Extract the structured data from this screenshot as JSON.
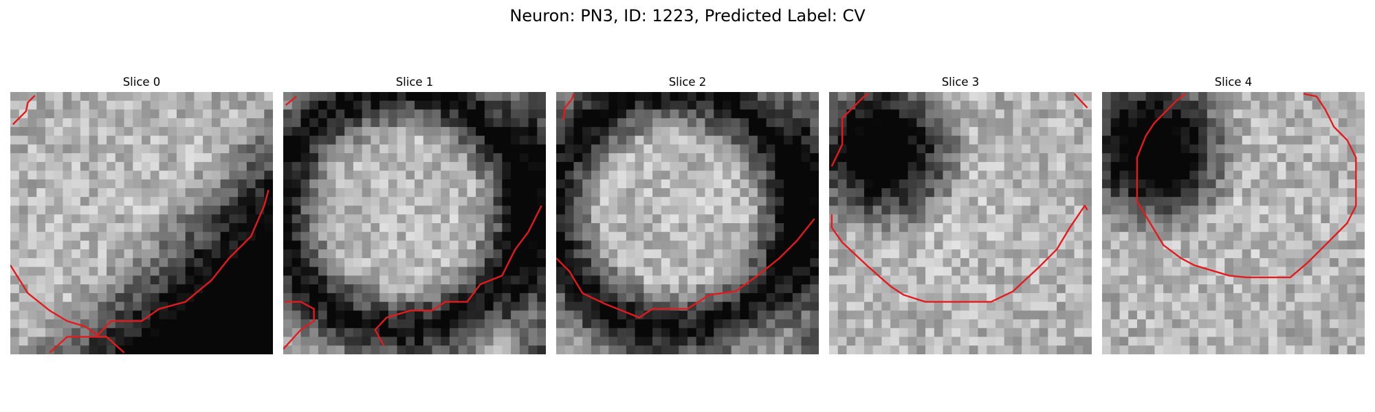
{
  "figure": {
    "title": "Neuron: PN3, ID: 1223, Predicted Label: CV"
  },
  "panels": [
    {
      "title": "Slice 0",
      "dark_side": "bottom-right",
      "seed": 11
    },
    {
      "title": "Slice 1",
      "dark_side": "right",
      "seed": 23
    },
    {
      "title": "Slice 2",
      "dark_side": "right",
      "seed": 37
    },
    {
      "title": "Slice 3",
      "dark_side": "top-left",
      "seed": 41
    },
    {
      "title": "Slice 4",
      "dark_side": "top-left",
      "seed": 53
    }
  ],
  "colors": {
    "contour": "#e41a1c",
    "background": "#ffffff"
  }
}
